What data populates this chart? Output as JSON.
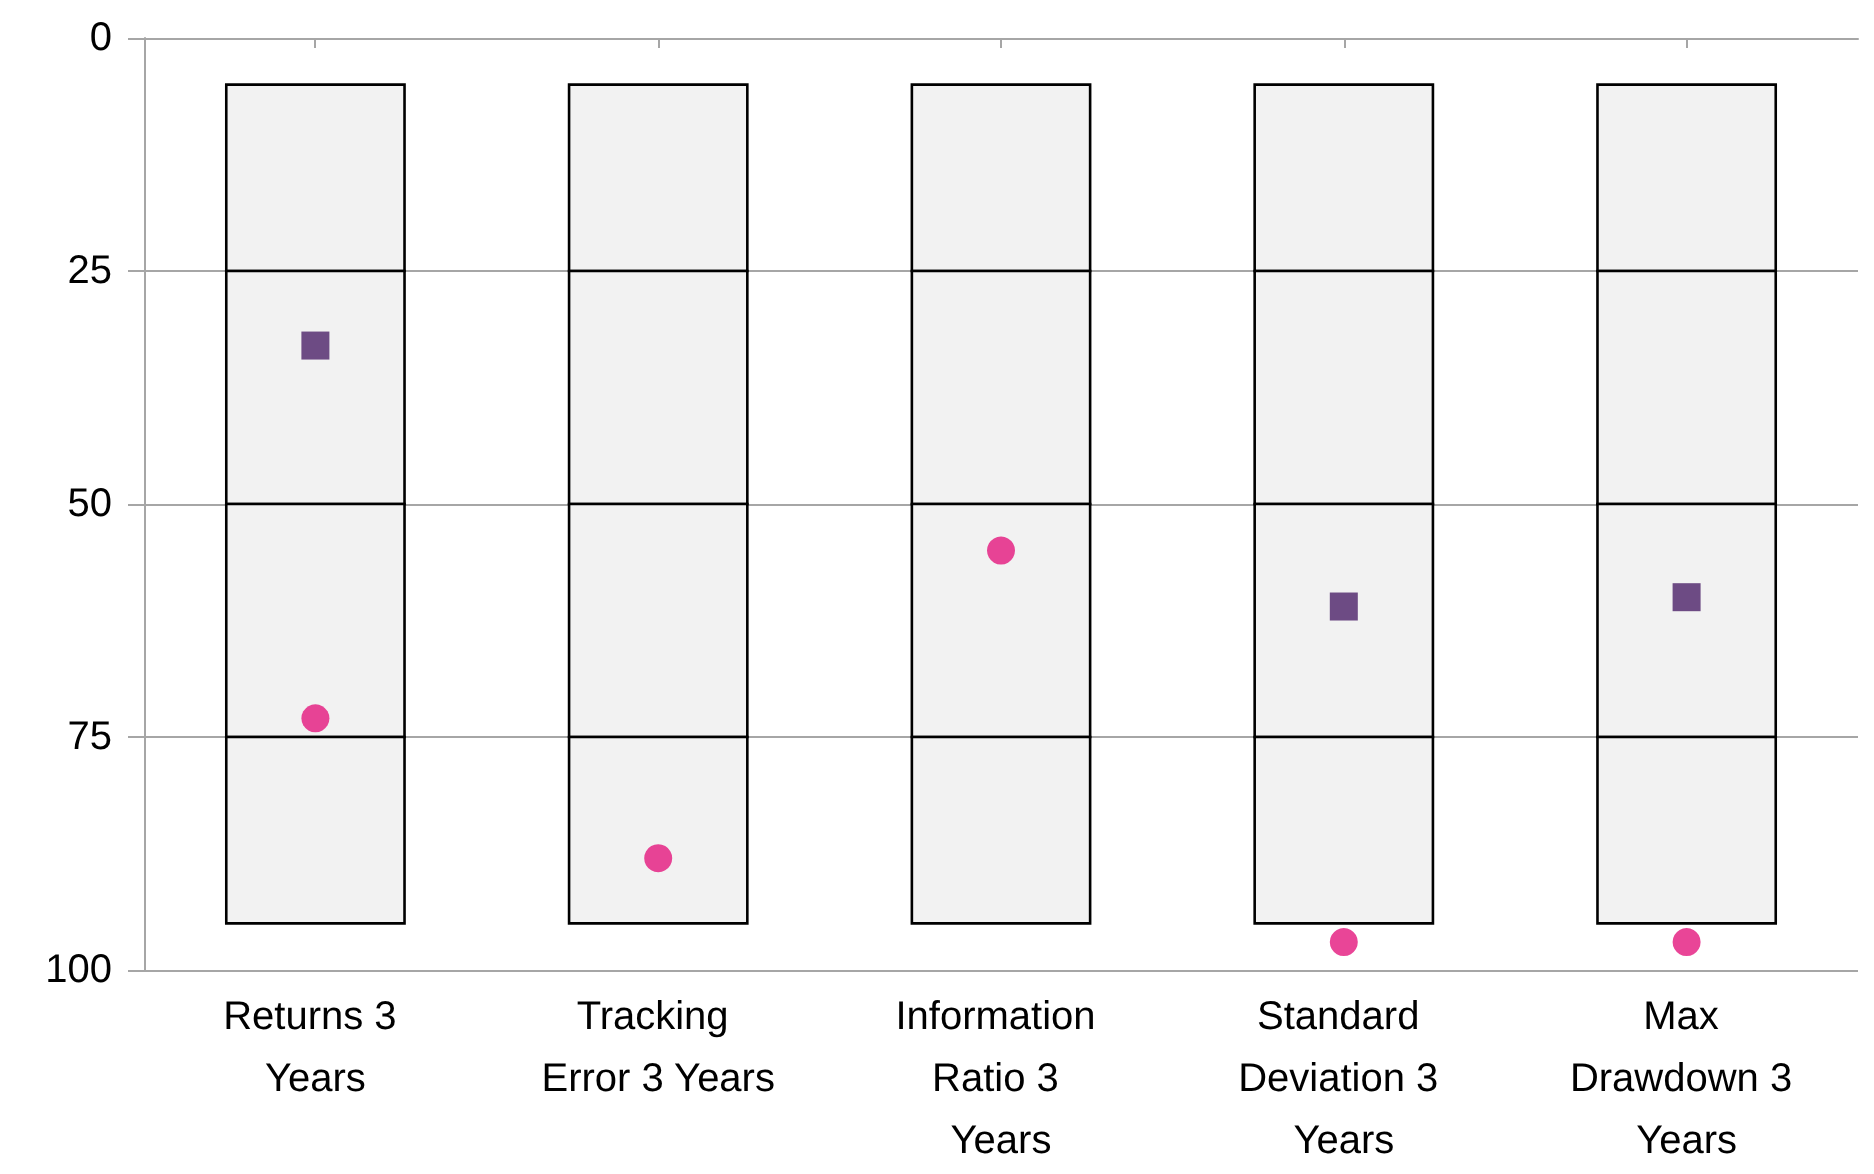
{
  "chart_data": {
    "type": "bar",
    "categories": [
      "Returns 3 Years",
      "Tracking Error 3 Years",
      "Information Ratio 3 Years",
      "Standard Deviation 3 Years",
      "Max Drawdown 3 Years"
    ],
    "series": [
      {
        "color": "#f2f2f2",
        "base": [
          5,
          5,
          5,
          5,
          5
        ],
        "values": [
          20,
          20,
          20,
          20,
          20
        ]
      },
      {
        "color": "#f2f2f2",
        "base": [
          25,
          25,
          25,
          25,
          25
        ],
        "values": [
          25,
          25,
          25,
          25,
          25
        ]
      },
      {
        "color": "#f2f2f2",
        "base": [
          50,
          50,
          50,
          50,
          50
        ],
        "values": [
          25,
          25,
          25,
          25,
          25
        ]
      },
      {
        "color": "#f2f2f2",
        "base": [
          75,
          75,
          75,
          75,
          75
        ],
        "values": [
          20,
          20,
          20,
          20,
          20
        ]
      },
      {
        "type": "scatter",
        "marker": "square",
        "color": "#4b2068",
        "x": [
          "Returns 3 Years",
          "Standard Deviation 3 Years",
          "Max Drawdown 3 Years"
        ],
        "values": [
          33,
          61,
          60
        ]
      },
      {
        "type": "scatter",
        "marker": "circle",
        "color": "#e3177d",
        "x": [
          "Returns 3 Years",
          "Tracking Error 3 Years",
          "Information Ratio 3 Years",
          "Standard Deviation 3 Years",
          "Max Drawdown 3 Years"
        ],
        "values": [
          73,
          88,
          55,
          97,
          97
        ]
      }
    ],
    "ylim": [
      100,
      0
    ],
    "yticks": [
      0,
      25,
      50,
      75,
      100
    ],
    "grid": "y"
  }
}
